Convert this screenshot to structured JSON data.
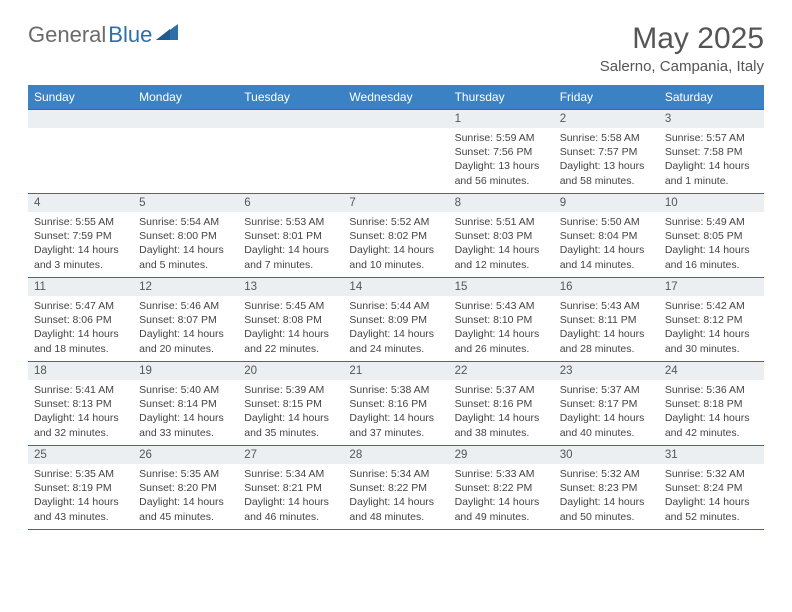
{
  "logo": {
    "textGray": "General",
    "textBlue": "Blue"
  },
  "header": {
    "title": "May 2025",
    "subtitle": "Salerno, Campania, Italy"
  },
  "colors": {
    "headerBar": "#3b82c4",
    "rowBorder": "#2f6fa8",
    "dayNumBg": "#eceff1",
    "logoGray": "#6b6b6b",
    "logoBlue": "#2f6fa8"
  },
  "dayHeaders": [
    "Sunday",
    "Monday",
    "Tuesday",
    "Wednesday",
    "Thursday",
    "Friday",
    "Saturday"
  ],
  "weeks": [
    [
      null,
      null,
      null,
      null,
      {
        "n": "1",
        "sr": "Sunrise: 5:59 AM",
        "ss": "Sunset: 7:56 PM",
        "dl": "Daylight: 13 hours and 56 minutes."
      },
      {
        "n": "2",
        "sr": "Sunrise: 5:58 AM",
        "ss": "Sunset: 7:57 PM",
        "dl": "Daylight: 13 hours and 58 minutes."
      },
      {
        "n": "3",
        "sr": "Sunrise: 5:57 AM",
        "ss": "Sunset: 7:58 PM",
        "dl": "Daylight: 14 hours and 1 minute."
      }
    ],
    [
      {
        "n": "4",
        "sr": "Sunrise: 5:55 AM",
        "ss": "Sunset: 7:59 PM",
        "dl": "Daylight: 14 hours and 3 minutes."
      },
      {
        "n": "5",
        "sr": "Sunrise: 5:54 AM",
        "ss": "Sunset: 8:00 PM",
        "dl": "Daylight: 14 hours and 5 minutes."
      },
      {
        "n": "6",
        "sr": "Sunrise: 5:53 AM",
        "ss": "Sunset: 8:01 PM",
        "dl": "Daylight: 14 hours and 7 minutes."
      },
      {
        "n": "7",
        "sr": "Sunrise: 5:52 AM",
        "ss": "Sunset: 8:02 PM",
        "dl": "Daylight: 14 hours and 10 minutes."
      },
      {
        "n": "8",
        "sr": "Sunrise: 5:51 AM",
        "ss": "Sunset: 8:03 PM",
        "dl": "Daylight: 14 hours and 12 minutes."
      },
      {
        "n": "9",
        "sr": "Sunrise: 5:50 AM",
        "ss": "Sunset: 8:04 PM",
        "dl": "Daylight: 14 hours and 14 minutes."
      },
      {
        "n": "10",
        "sr": "Sunrise: 5:49 AM",
        "ss": "Sunset: 8:05 PM",
        "dl": "Daylight: 14 hours and 16 minutes."
      }
    ],
    [
      {
        "n": "11",
        "sr": "Sunrise: 5:47 AM",
        "ss": "Sunset: 8:06 PM",
        "dl": "Daylight: 14 hours and 18 minutes."
      },
      {
        "n": "12",
        "sr": "Sunrise: 5:46 AM",
        "ss": "Sunset: 8:07 PM",
        "dl": "Daylight: 14 hours and 20 minutes."
      },
      {
        "n": "13",
        "sr": "Sunrise: 5:45 AM",
        "ss": "Sunset: 8:08 PM",
        "dl": "Daylight: 14 hours and 22 minutes."
      },
      {
        "n": "14",
        "sr": "Sunrise: 5:44 AM",
        "ss": "Sunset: 8:09 PM",
        "dl": "Daylight: 14 hours and 24 minutes."
      },
      {
        "n": "15",
        "sr": "Sunrise: 5:43 AM",
        "ss": "Sunset: 8:10 PM",
        "dl": "Daylight: 14 hours and 26 minutes."
      },
      {
        "n": "16",
        "sr": "Sunrise: 5:43 AM",
        "ss": "Sunset: 8:11 PM",
        "dl": "Daylight: 14 hours and 28 minutes."
      },
      {
        "n": "17",
        "sr": "Sunrise: 5:42 AM",
        "ss": "Sunset: 8:12 PM",
        "dl": "Daylight: 14 hours and 30 minutes."
      }
    ],
    [
      {
        "n": "18",
        "sr": "Sunrise: 5:41 AM",
        "ss": "Sunset: 8:13 PM",
        "dl": "Daylight: 14 hours and 32 minutes."
      },
      {
        "n": "19",
        "sr": "Sunrise: 5:40 AM",
        "ss": "Sunset: 8:14 PM",
        "dl": "Daylight: 14 hours and 33 minutes."
      },
      {
        "n": "20",
        "sr": "Sunrise: 5:39 AM",
        "ss": "Sunset: 8:15 PM",
        "dl": "Daylight: 14 hours and 35 minutes."
      },
      {
        "n": "21",
        "sr": "Sunrise: 5:38 AM",
        "ss": "Sunset: 8:16 PM",
        "dl": "Daylight: 14 hours and 37 minutes."
      },
      {
        "n": "22",
        "sr": "Sunrise: 5:37 AM",
        "ss": "Sunset: 8:16 PM",
        "dl": "Daylight: 14 hours and 38 minutes."
      },
      {
        "n": "23",
        "sr": "Sunrise: 5:37 AM",
        "ss": "Sunset: 8:17 PM",
        "dl": "Daylight: 14 hours and 40 minutes."
      },
      {
        "n": "24",
        "sr": "Sunrise: 5:36 AM",
        "ss": "Sunset: 8:18 PM",
        "dl": "Daylight: 14 hours and 42 minutes."
      }
    ],
    [
      {
        "n": "25",
        "sr": "Sunrise: 5:35 AM",
        "ss": "Sunset: 8:19 PM",
        "dl": "Daylight: 14 hours and 43 minutes."
      },
      {
        "n": "26",
        "sr": "Sunrise: 5:35 AM",
        "ss": "Sunset: 8:20 PM",
        "dl": "Daylight: 14 hours and 45 minutes."
      },
      {
        "n": "27",
        "sr": "Sunrise: 5:34 AM",
        "ss": "Sunset: 8:21 PM",
        "dl": "Daylight: 14 hours and 46 minutes."
      },
      {
        "n": "28",
        "sr": "Sunrise: 5:34 AM",
        "ss": "Sunset: 8:22 PM",
        "dl": "Daylight: 14 hours and 48 minutes."
      },
      {
        "n": "29",
        "sr": "Sunrise: 5:33 AM",
        "ss": "Sunset: 8:22 PM",
        "dl": "Daylight: 14 hours and 49 minutes."
      },
      {
        "n": "30",
        "sr": "Sunrise: 5:32 AM",
        "ss": "Sunset: 8:23 PM",
        "dl": "Daylight: 14 hours and 50 minutes."
      },
      {
        "n": "31",
        "sr": "Sunrise: 5:32 AM",
        "ss": "Sunset: 8:24 PM",
        "dl": "Daylight: 14 hours and 52 minutes."
      }
    ]
  ]
}
